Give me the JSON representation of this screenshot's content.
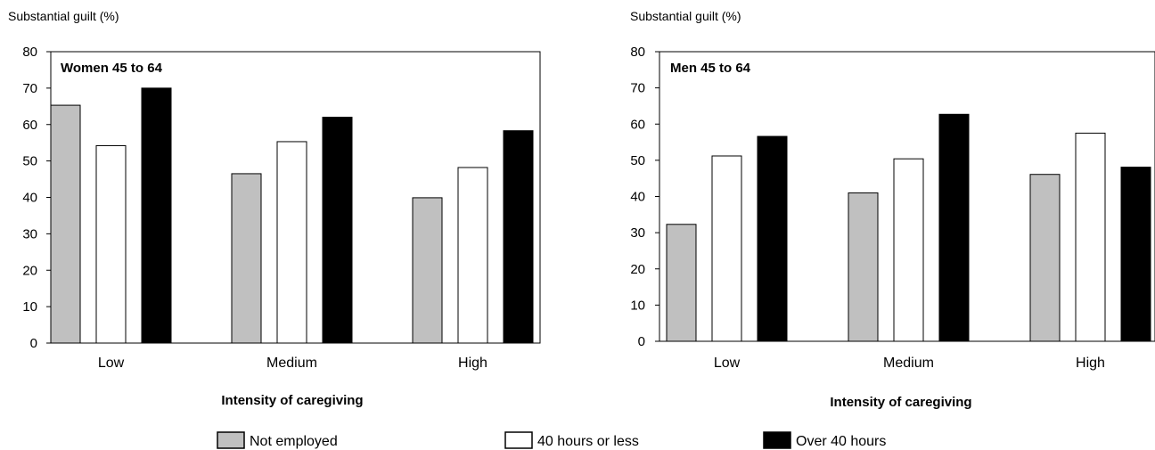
{
  "legend": [
    {
      "name": "Not employed",
      "color": "#c0c0c0"
    },
    {
      "name": "40 hours or less",
      "color": "#ffffff"
    },
    {
      "name": "Over 40 hours",
      "color": "#000000"
    }
  ],
  "chart_data": [
    {
      "type": "bar",
      "title": "Women 45 to 64",
      "ylabel": "Substantial guilt (%)",
      "xlabel": "Intensity of caregiving",
      "categories": [
        "Low",
        "Medium",
        "High"
      ],
      "ylim": [
        0,
        80
      ],
      "yticks": [
        0,
        10,
        20,
        30,
        40,
        50,
        60,
        70,
        80
      ],
      "grid": false,
      "legend_position": "bottom",
      "series": [
        {
          "name": "Not employed",
          "color": "#c0c0c0",
          "values": [
            65.3,
            46.5,
            39.9
          ]
        },
        {
          "name": "40 hours or less",
          "color": "#ffffff",
          "values": [
            54.2,
            55.3,
            48.2
          ]
        },
        {
          "name": "Over 40 hours",
          "color": "#000000",
          "values": [
            70.0,
            62.0,
            58.3
          ]
        }
      ]
    },
    {
      "type": "bar",
      "title": "Men 45 to 64",
      "ylabel": "Substantial guilt (%)",
      "xlabel": "Intensity of caregiving",
      "categories": [
        "Low",
        "Medium",
        "High"
      ],
      "ylim": [
        0,
        80
      ],
      "yticks": [
        0,
        10,
        20,
        30,
        40,
        50,
        60,
        70,
        80
      ],
      "grid": false,
      "legend_position": "bottom",
      "series": [
        {
          "name": "Not employed",
          "color": "#c0c0c0",
          "values": [
            32.3,
            41.0,
            46.1
          ]
        },
        {
          "name": "40 hours or less",
          "color": "#ffffff",
          "values": [
            51.2,
            50.4,
            57.5
          ]
        },
        {
          "name": "Over 40 hours",
          "color": "#000000",
          "values": [
            56.6,
            62.7,
            48.1
          ]
        }
      ]
    }
  ]
}
